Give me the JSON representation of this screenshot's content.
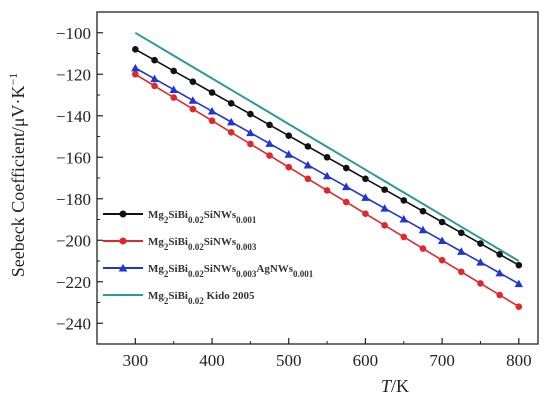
{
  "chart_data": {
    "type": "line",
    "title": "",
    "xlabel_italic": "T",
    "xlabel_rest": "/K",
    "ylabel": "Seebeck Coefficient/μV·K",
    "ylabel_sup": "−1",
    "xlim": [
      250,
      825
    ],
    "ylim": [
      -250,
      -90
    ],
    "xticks": [
      300,
      400,
      500,
      600,
      700,
      800
    ],
    "yticks": [
      -100,
      -120,
      -140,
      -160,
      -180,
      -200,
      -220,
      -240
    ],
    "ytick_labels": [
      "−100",
      "−120",
      "−140",
      "−160",
      "−180",
      "−200",
      "−220",
      "−240"
    ],
    "grid": false,
    "legend_position": "bottom-left",
    "x": [
      300,
      325,
      350,
      375,
      400,
      425,
      450,
      475,
      500,
      525,
      550,
      575,
      600,
      625,
      650,
      675,
      700,
      725,
      750,
      775,
      800
    ],
    "series": [
      {
        "name": "Mg2SiBi0.02SiNWs0.001",
        "legend": [
          [
            "Mg",
            ""
          ],
          [
            "2",
            "sub"
          ],
          [
            "SiBi",
            ""
          ],
          [
            "0.02",
            "sub"
          ],
          [
            "SiNWs",
            ""
          ],
          [
            "0.001",
            "sub"
          ]
        ],
        "color": "#111111",
        "marker": "circle",
        "values": [
          -108,
          -113.2,
          -118.4,
          -123.6,
          -128.8,
          -134,
          -139.2,
          -144.4,
          -149.6,
          -154.8,
          -160,
          -165.2,
          -170.4,
          -175.6,
          -180.8,
          -186,
          -191.2,
          -196.4,
          -201.6,
          -206.8,
          -212
        ]
      },
      {
        "name": "Mg2SiBi0.02SiNWs0.003",
        "legend": [
          [
            "Mg",
            ""
          ],
          [
            "2",
            "sub"
          ],
          [
            "SiBi",
            ""
          ],
          [
            "0.02",
            "sub"
          ],
          [
            "SiNWs",
            ""
          ],
          [
            "0.003",
            "sub"
          ]
        ],
        "color": "#e0282a",
        "marker": "circle",
        "values": [
          -120,
          -125.6,
          -131.2,
          -136.8,
          -142.4,
          -148,
          -153.6,
          -159.2,
          -164.8,
          -170.4,
          -176,
          -181.6,
          -187.2,
          -192.8,
          -198.4,
          -204,
          -209.6,
          -215.2,
          -220.8,
          -226.4,
          -232
        ]
      },
      {
        "name": "Mg2SiBi0.02SiNWs0.003AgNWs0.001",
        "legend": [
          [
            "Mg",
            ""
          ],
          [
            "2",
            "sub"
          ],
          [
            "SiBi",
            ""
          ],
          [
            "0.02",
            "sub"
          ],
          [
            "SiNWs",
            ""
          ],
          [
            "0.003",
            "sub"
          ],
          [
            "AgNWs",
            ""
          ],
          [
            "0.001",
            "sub"
          ]
        ],
        "color": "#1f35d6",
        "marker": "triangle",
        "values": [
          -117,
          -122.2,
          -127.4,
          -132.6,
          -137.8,
          -143,
          -148.2,
          -153.4,
          -158.6,
          -163.8,
          -169,
          -174.2,
          -179.4,
          -184.6,
          -189.8,
          -195,
          -200.2,
          -205.4,
          -210.6,
          -215.8,
          -221
        ]
      },
      {
        "name": "Mg2SiBi0.02 Kido 2005",
        "legend": [
          [
            "Mg",
            ""
          ],
          [
            "2",
            "sub"
          ],
          [
            "SiBi",
            ""
          ],
          [
            "0.02",
            "sub"
          ],
          [
            "  Kido  2005",
            ""
          ]
        ],
        "color": "#2a9a9a",
        "marker": "none",
        "values": [
          -100,
          -105.5,
          -111,
          -116.5,
          -122,
          -127.5,
          -133,
          -138.5,
          -144,
          -149.5,
          -155,
          -160.5,
          -166,
          -171.5,
          -177,
          -182.5,
          -188,
          -193.5,
          -199,
          -204.5,
          -210
        ]
      }
    ]
  }
}
